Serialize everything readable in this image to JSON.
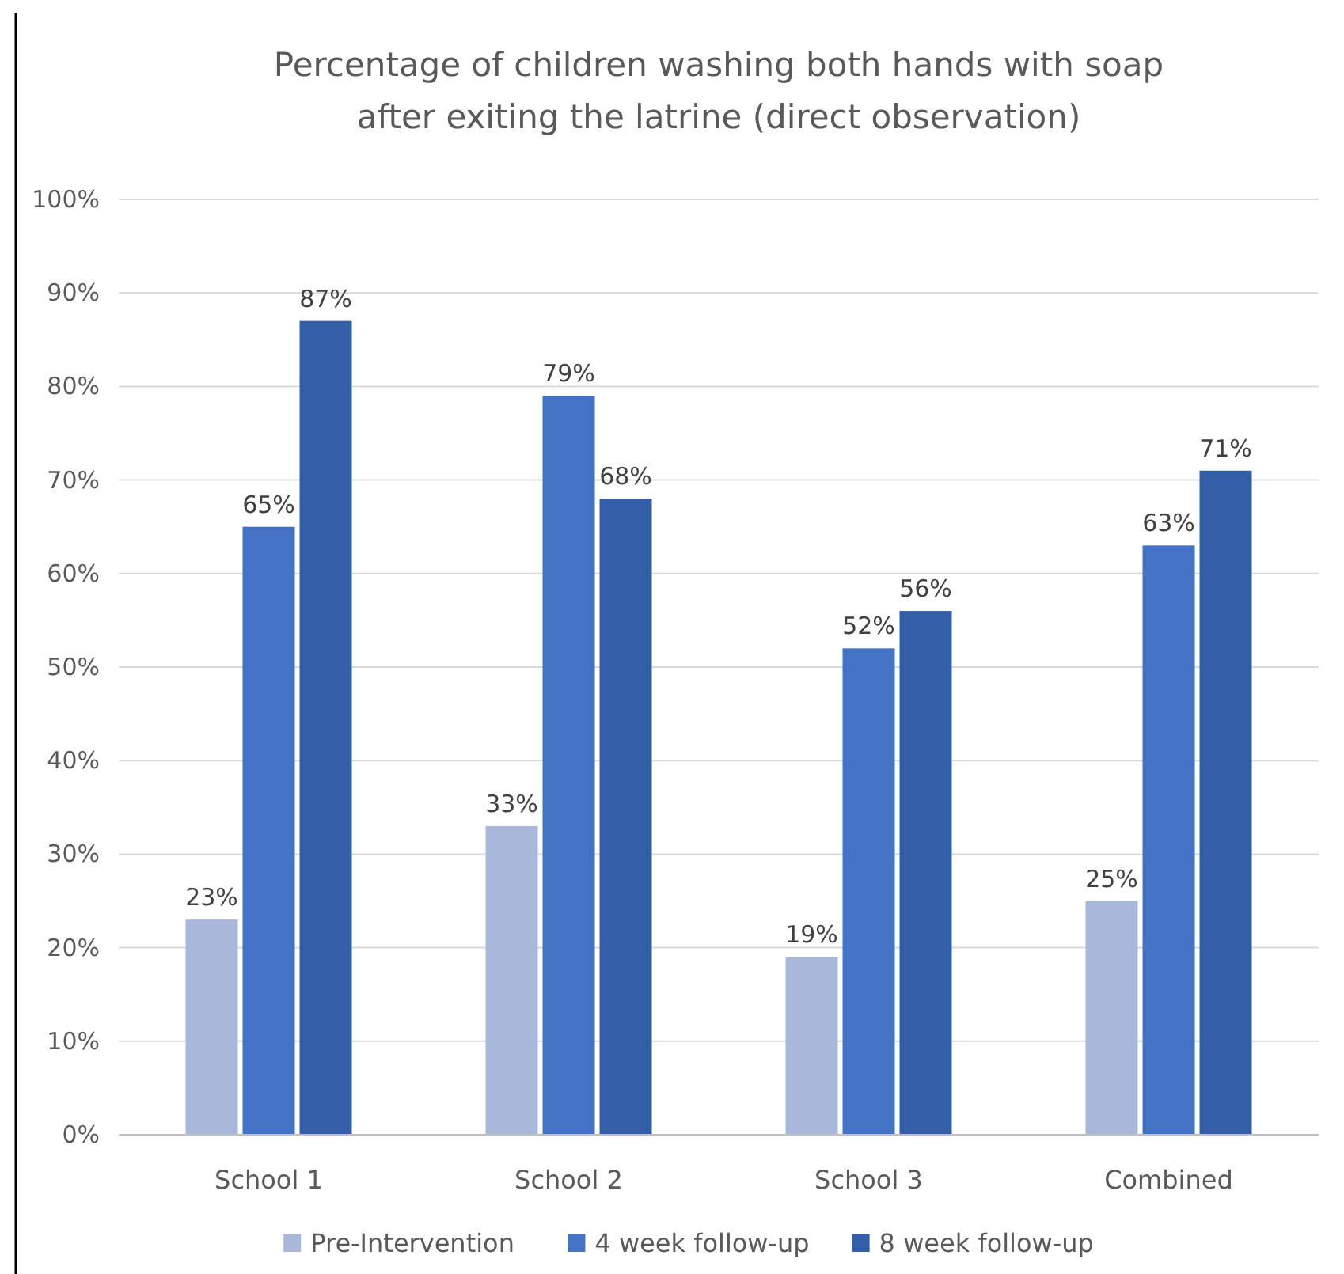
{
  "chart_data": {
    "type": "bar",
    "title": "Percentage of children washing both hands with soap\nafter exiting the latrine (direct observation)",
    "categories": [
      "School 1",
      "School 2",
      "School 3",
      "Combined"
    ],
    "series": [
      {
        "name": "Pre-Intervention",
        "color": "#a9b7db",
        "values": [
          23,
          33,
          19,
          25
        ],
        "value_labels": [
          "23%",
          "33%",
          "19%",
          "25%"
        ]
      },
      {
        "name": "4 week follow-up",
        "color": "#4472c4",
        "values": [
          65,
          79,
          52,
          63
        ],
        "value_labels": [
          "65%",
          "79%",
          "52%",
          "63%"
        ]
      },
      {
        "name": "8 week follow-up",
        "color": "#335ea8",
        "values": [
          87,
          68,
          56,
          71
        ],
        "value_labels": [
          "87%",
          "68%",
          "56%",
          "71%"
        ]
      }
    ],
    "ylim": [
      0,
      100
    ],
    "yticks": [
      {
        "value": 0,
        "label": "0%"
      },
      {
        "value": 10,
        "label": "10%"
      },
      {
        "value": 20,
        "label": "20%"
      },
      {
        "value": 30,
        "label": "30%"
      },
      {
        "value": 40,
        "label": "40%"
      },
      {
        "value": 50,
        "label": "50%"
      },
      {
        "value": 60,
        "label": "60%"
      },
      {
        "value": 70,
        "label": "70%"
      },
      {
        "value": 80,
        "label": "80%"
      },
      {
        "value": 90,
        "label": "90%"
      },
      {
        "value": 100,
        "label": "100%"
      }
    ],
    "grid": "y",
    "legend": "bottom"
  }
}
